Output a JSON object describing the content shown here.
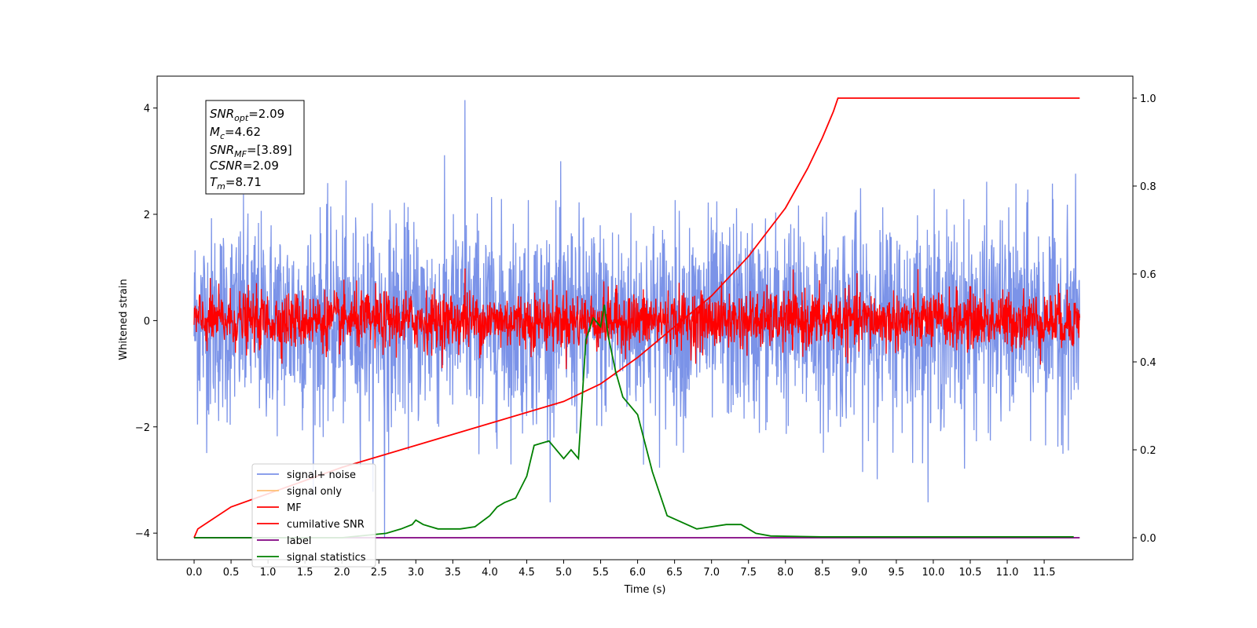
{
  "chart_data": {
    "type": "line",
    "xlabel": "Time (s)",
    "ylabel": "Whitened strain",
    "xlim": [
      -0.5,
      12.7
    ],
    "ylim": [
      -4.5,
      4.6
    ],
    "y2lim": [
      -0.05,
      1.05
    ],
    "x_ticks": [
      "0.0",
      "0.5",
      "1.0",
      "1.5",
      "2.0",
      "2.5",
      "3.0",
      "3.5",
      "4.0",
      "4.5",
      "5.0",
      "5.5",
      "6.0",
      "6.5",
      "7.0",
      "7.5",
      "8.0",
      "8.5",
      "9.0",
      "9.5",
      "10.0",
      "10.5",
      "11.0",
      "11.5"
    ],
    "y_ticks": [
      "4",
      "2",
      "0",
      "−2",
      "−4"
    ],
    "y2_ticks": [
      "1.0",
      "0.8",
      "0.6",
      "0.4",
      "0.2",
      "0.0"
    ],
    "legend_position": "lower-left",
    "annotation": {
      "snr_opt": {
        "base": "SNR",
        "sub": "opt",
        "value": "=2.09"
      },
      "mc": {
        "base": "M",
        "sub": "c",
        "value": "=4.62"
      },
      "snr_mf": {
        "base": "SNR",
        "sub": "MF",
        "value": "=[3.89]"
      },
      "csnr": {
        "base": "CSNR",
        "value": "=2.09"
      },
      "tm": {
        "base": "T",
        "sub": "m",
        "value": "=8.71"
      }
    },
    "series": [
      {
        "name": "signal+ noise",
        "color": "#7b93e8",
        "axis": "left",
        "kind": "noise",
        "x_range": [
          0,
          11.98
        ],
        "std": 0.95,
        "peak_max": 4.15,
        "peak_min": -4.1
      },
      {
        "name": "signal only",
        "color": "#ffbf74",
        "axis": "left",
        "kind": "hidden"
      },
      {
        "name": "MF",
        "color": "#ff0000",
        "axis": "left",
        "kind": "noise",
        "x_range": [
          0,
          11.98
        ],
        "std": 0.27,
        "peak_max": 0.98
      },
      {
        "name": "cumilative SNR",
        "color": "#ff0000",
        "axis": "right",
        "x": [
          0.0,
          0.05,
          0.5,
          1.0,
          2.0,
          3.0,
          4.0,
          5.0,
          5.5,
          6.0,
          6.5,
          7.0,
          7.5,
          8.0,
          8.3,
          8.5,
          8.6,
          8.65,
          8.71,
          11.98
        ],
        "values": [
          0.0,
          0.02,
          0.07,
          0.1,
          0.16,
          0.21,
          0.26,
          0.31,
          0.35,
          0.41,
          0.48,
          0.55,
          0.64,
          0.75,
          0.84,
          0.91,
          0.95,
          0.97,
          1.0,
          1.0
        ]
      },
      {
        "name": "label",
        "color": "#800080",
        "axis": "right",
        "x": [
          0.0,
          11.98
        ],
        "values": [
          0.0,
          0.0
        ]
      },
      {
        "name": "signal statistics",
        "color": "#008000",
        "axis": "right",
        "x": [
          0.0,
          1.0,
          2.0,
          2.6,
          2.8,
          2.95,
          3.0,
          3.1,
          3.3,
          3.6,
          3.8,
          4.0,
          4.1,
          4.2,
          4.35,
          4.5,
          4.6,
          4.8,
          5.0,
          5.1,
          5.2,
          5.3,
          5.4,
          5.5,
          5.55,
          5.6,
          5.7,
          5.8,
          6.0,
          6.2,
          6.4,
          6.8,
          7.2,
          7.4,
          7.6,
          7.8,
          8.5,
          9.0,
          10.0,
          11.0,
          11.9
        ],
        "values": [
          0.0,
          0.0,
          0.0,
          0.01,
          0.02,
          0.03,
          0.04,
          0.03,
          0.02,
          0.02,
          0.025,
          0.05,
          0.07,
          0.08,
          0.09,
          0.14,
          0.21,
          0.22,
          0.18,
          0.2,
          0.18,
          0.45,
          0.5,
          0.48,
          0.53,
          0.46,
          0.38,
          0.32,
          0.28,
          0.15,
          0.05,
          0.02,
          0.03,
          0.03,
          0.01,
          0.004,
          0.002,
          0.002,
          0.002,
          0.002,
          0.002
        ]
      }
    ]
  }
}
